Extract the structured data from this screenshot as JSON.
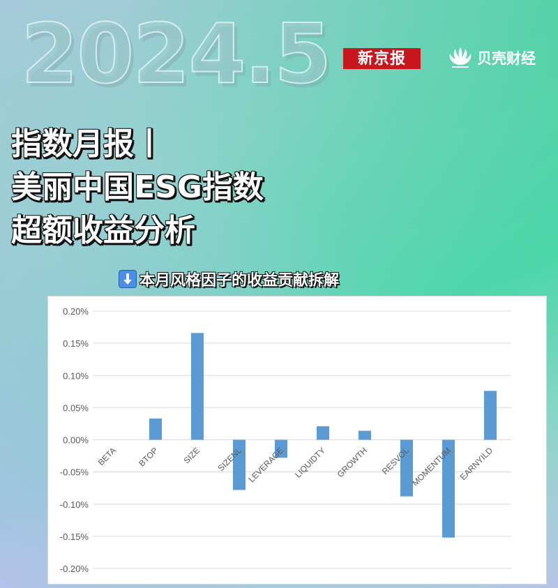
{
  "header": {
    "year": "2024.5",
    "logo_bjnews": "新京报",
    "logo_beike": "贝壳财经"
  },
  "title_lines": [
    "指数月报丨",
    "美丽中国ESG指数",
    "超额收益分析"
  ],
  "subtitle": "本月风格因子的收益贡献拆解",
  "colors": {
    "bar": "#5b9bd5",
    "grid": "#d9d9d9",
    "tick": "#595959"
  },
  "chart_data": {
    "type": "bar",
    "categories": [
      "BETA",
      "BTOP",
      "SIZE",
      "SIZENL",
      "LEVERAGE",
      "LIQUIDTY",
      "GROWTH",
      "RESVOL",
      "MOMENTUM",
      "EARNYILD"
    ],
    "values": [
      0.0,
      0.033,
      0.166,
      -0.078,
      -0.028,
      0.021,
      0.014,
      -0.088,
      -0.152,
      0.076
    ],
    "ylim": [
      -0.2,
      0.2
    ],
    "yticks": [
      "0.20%",
      "0.15%",
      "0.10%",
      "0.05%",
      "0.00%",
      "-0.05%",
      "-0.10%",
      "-0.15%",
      "-0.20%"
    ],
    "ytick_values": [
      0.2,
      0.15,
      0.1,
      0.05,
      0.0,
      -0.05,
      -0.1,
      -0.15,
      -0.2
    ],
    "grid": true,
    "title": "",
    "xlabel": "",
    "ylabel": ""
  }
}
